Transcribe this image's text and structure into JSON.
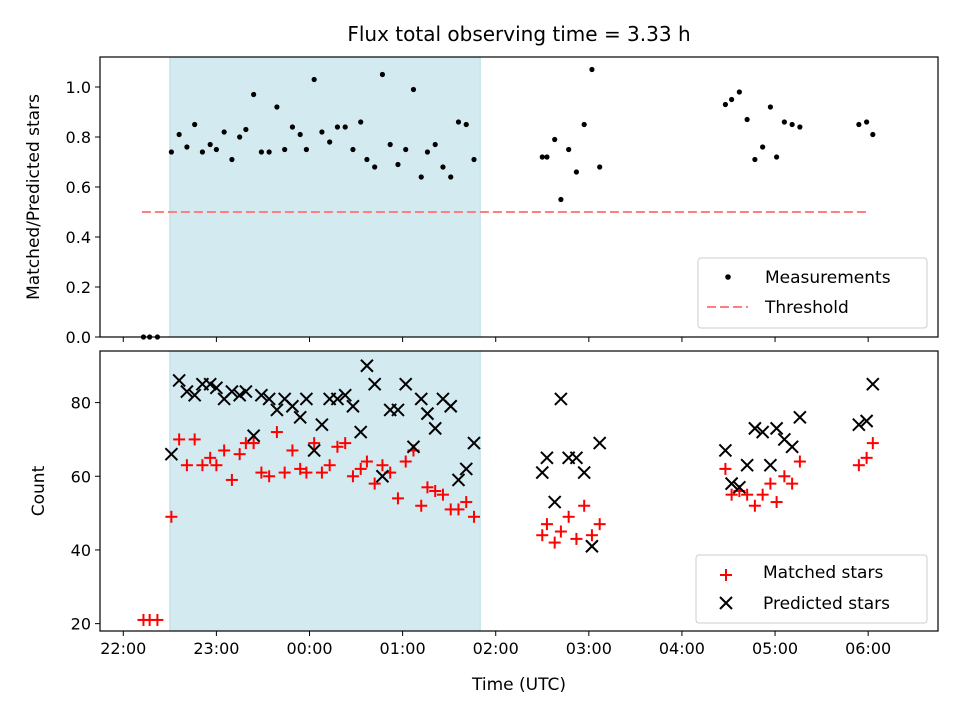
{
  "chart_data": [
    {
      "type": "scatter",
      "title": "Flux total observing time = 3.33 h",
      "xlabel": "",
      "ylabel": "Matched/Predicted stars",
      "xlim": [
        "21:45",
        "06:45"
      ],
      "ylim": [
        0,
        1.12
      ],
      "xticks": [
        "22:00",
        "23:00",
        "00:00",
        "01:00",
        "02:00",
        "03:00",
        "04:00",
        "05:00",
        "06:00"
      ],
      "yticks": [
        "0.0",
        "0.2",
        "0.4",
        "0.6",
        "0.8",
        "1.0"
      ],
      "x_tick_labels_visible": false,
      "shaded_interval": [
        "22:30",
        "01:50"
      ],
      "shade_color": "#d4eaf1",
      "legend": {
        "position": "lower right",
        "entries": [
          "Measurements",
          "Threshold"
        ]
      },
      "threshold": {
        "name": "Threshold",
        "value": 0.5,
        "x_range": [
          "22:12",
          "06:00"
        ],
        "color": "#ff7f7f",
        "style": "dashed"
      },
      "series": [
        {
          "name": "Measurements",
          "marker": "dot",
          "color": "#000000",
          "points": [
            [
              "22:13",
              0.0
            ],
            [
              "22:17",
              0.0
            ],
            [
              "22:22",
              0.0
            ],
            [
              "22:31",
              0.74
            ],
            [
              "22:36",
              0.81
            ],
            [
              "22:41",
              0.76
            ],
            [
              "22:46",
              0.85
            ],
            [
              "22:51",
              0.74
            ],
            [
              "22:56",
              0.77
            ],
            [
              "23:00",
              0.75
            ],
            [
              "23:05",
              0.82
            ],
            [
              "23:10",
              0.71
            ],
            [
              "23:15",
              0.8
            ],
            [
              "23:19",
              0.83
            ],
            [
              "23:24",
              0.97
            ],
            [
              "23:29",
              0.74
            ],
            [
              "23:34",
              0.74
            ],
            [
              "23:39",
              0.92
            ],
            [
              "23:44",
              0.75
            ],
            [
              "23:49",
              0.84
            ],
            [
              "23:54",
              0.81
            ],
            [
              "23:58",
              0.75
            ],
            [
              "00:03",
              1.03
            ],
            [
              "00:08",
              0.82
            ],
            [
              "00:13",
              0.78
            ],
            [
              "00:18",
              0.84
            ],
            [
              "00:23",
              0.84
            ],
            [
              "00:28",
              0.75
            ],
            [
              "00:33",
              0.86
            ],
            [
              "00:37",
              0.71
            ],
            [
              "00:42",
              0.68
            ],
            [
              "00:47",
              1.05
            ],
            [
              "00:52",
              0.77
            ],
            [
              "00:57",
              0.69
            ],
            [
              "01:02",
              0.75
            ],
            [
              "01:07",
              0.99
            ],
            [
              "01:12",
              0.64
            ],
            [
              "01:16",
              0.74
            ],
            [
              "01:21",
              0.77
            ],
            [
              "01:26",
              0.68
            ],
            [
              "01:31",
              0.64
            ],
            [
              "01:36",
              0.86
            ],
            [
              "01:41",
              0.85
            ],
            [
              "01:46",
              0.71
            ],
            [
              "02:30",
              0.72
            ],
            [
              "02:33",
              0.72
            ],
            [
              "02:38",
              0.79
            ],
            [
              "02:42",
              0.55
            ],
            [
              "02:47",
              0.75
            ],
            [
              "02:52",
              0.66
            ],
            [
              "02:57",
              0.85
            ],
            [
              "03:02",
              1.07
            ],
            [
              "03:07",
              0.68
            ],
            [
              "04:28",
              0.93
            ],
            [
              "04:32",
              0.95
            ],
            [
              "04:37",
              0.98
            ],
            [
              "04:42",
              0.87
            ],
            [
              "04:47",
              0.71
            ],
            [
              "04:52",
              0.76
            ],
            [
              "04:57",
              0.92
            ],
            [
              "05:01",
              0.72
            ],
            [
              "05:06",
              0.86
            ],
            [
              "05:11",
              0.85
            ],
            [
              "05:16",
              0.84
            ],
            [
              "05:54",
              0.85
            ],
            [
              "05:59",
              0.86
            ],
            [
              "06:03",
              0.81
            ]
          ]
        }
      ]
    },
    {
      "type": "scatter",
      "title": "",
      "xlabel": "Time (UTC)",
      "ylabel": "Count",
      "xlim": [
        "21:45",
        "06:45"
      ],
      "ylim": [
        18,
        94
      ],
      "xticks": [
        "22:00",
        "23:00",
        "00:00",
        "01:00",
        "02:00",
        "03:00",
        "04:00",
        "05:00",
        "06:00"
      ],
      "yticks": [
        "20",
        "40",
        "60",
        "80"
      ],
      "shaded_interval": [
        "22:30",
        "01:50"
      ],
      "shade_color": "#d4eaf1",
      "legend": {
        "position": "lower right",
        "entries": [
          "Matched stars",
          "Predicted stars"
        ]
      },
      "series": [
        {
          "name": "Matched stars",
          "marker": "plus",
          "color": "#ff0000",
          "points": [
            [
              "22:13",
              21
            ],
            [
              "22:17",
              21
            ],
            [
              "22:22",
              21
            ],
            [
              "22:31",
              49
            ],
            [
              "22:36",
              70
            ],
            [
              "22:41",
              63
            ],
            [
              "22:46",
              70
            ],
            [
              "22:51",
              63
            ],
            [
              "22:56",
              65
            ],
            [
              "23:00",
              63
            ],
            [
              "23:05",
              67
            ],
            [
              "23:10",
              59
            ],
            [
              "23:15",
              66
            ],
            [
              "23:19",
              69
            ],
            [
              "23:24",
              69
            ],
            [
              "23:29",
              61
            ],
            [
              "23:34",
              60
            ],
            [
              "23:39",
              72
            ],
            [
              "23:44",
              61
            ],
            [
              "23:49",
              67
            ],
            [
              "23:54",
              62
            ],
            [
              "23:58",
              61
            ],
            [
              "00:03",
              69
            ],
            [
              "00:08",
              61
            ],
            [
              "00:13",
              63
            ],
            [
              "00:18",
              68
            ],
            [
              "00:23",
              69
            ],
            [
              "00:28",
              60
            ],
            [
              "00:33",
              62
            ],
            [
              "00:37",
              64
            ],
            [
              "00:42",
              58
            ],
            [
              "00:47",
              63
            ],
            [
              "00:52",
              61
            ],
            [
              "00:57",
              54
            ],
            [
              "01:02",
              64
            ],
            [
              "01:07",
              67
            ],
            [
              "01:12",
              52
            ],
            [
              "01:16",
              57
            ],
            [
              "01:21",
              56
            ],
            [
              "01:26",
              55
            ],
            [
              "01:31",
              51
            ],
            [
              "01:36",
              51
            ],
            [
              "01:41",
              53
            ],
            [
              "01:46",
              49
            ],
            [
              "02:30",
              44
            ],
            [
              "02:33",
              47
            ],
            [
              "02:38",
              42
            ],
            [
              "02:42",
              45
            ],
            [
              "02:47",
              49
            ],
            [
              "02:52",
              43
            ],
            [
              "02:57",
              52
            ],
            [
              "03:02",
              44
            ],
            [
              "03:07",
              47
            ],
            [
              "04:28",
              62
            ],
            [
              "04:32",
              55
            ],
            [
              "04:37",
              56
            ],
            [
              "04:42",
              55
            ],
            [
              "04:47",
              52
            ],
            [
              "04:52",
              55
            ],
            [
              "04:57",
              58
            ],
            [
              "05:01",
              53
            ],
            [
              "05:06",
              60
            ],
            [
              "05:11",
              58
            ],
            [
              "05:16",
              64
            ],
            [
              "05:54",
              63
            ],
            [
              "05:59",
              65
            ],
            [
              "06:03",
              69
            ]
          ]
        },
        {
          "name": "Predicted stars",
          "marker": "x",
          "color": "#000000",
          "points": [
            [
              "22:31",
              66
            ],
            [
              "22:36",
              86
            ],
            [
              "22:41",
              83
            ],
            [
              "22:46",
              82
            ],
            [
              "22:51",
              85
            ],
            [
              "22:56",
              85
            ],
            [
              "23:00",
              84
            ],
            [
              "23:05",
              81
            ],
            [
              "23:10",
              83
            ],
            [
              "23:15",
              82
            ],
            [
              "23:19",
              83
            ],
            [
              "23:24",
              71
            ],
            [
              "23:29",
              82
            ],
            [
              "23:34",
              81
            ],
            [
              "23:39",
              78
            ],
            [
              "23:44",
              81
            ],
            [
              "23:49",
              79
            ],
            [
              "23:54",
              76
            ],
            [
              "23:58",
              81
            ],
            [
              "00:03",
              67
            ],
            [
              "00:08",
              74
            ],
            [
              "00:13",
              81
            ],
            [
              "00:18",
              81
            ],
            [
              "00:23",
              82
            ],
            [
              "00:28",
              79
            ],
            [
              "00:33",
              72
            ],
            [
              "00:37",
              90
            ],
            [
              "00:42",
              85
            ],
            [
              "00:47",
              60
            ],
            [
              "00:52",
              78
            ],
            [
              "00:57",
              78
            ],
            [
              "01:02",
              85
            ],
            [
              "01:07",
              68
            ],
            [
              "01:12",
              81
            ],
            [
              "01:16",
              77
            ],
            [
              "01:21",
              73
            ],
            [
              "01:26",
              81
            ],
            [
              "01:31",
              79
            ],
            [
              "01:36",
              59
            ],
            [
              "01:41",
              62
            ],
            [
              "01:46",
              69
            ],
            [
              "02:30",
              61
            ],
            [
              "02:33",
              65
            ],
            [
              "02:38",
              53
            ],
            [
              "02:42",
              81
            ],
            [
              "02:47",
              65
            ],
            [
              "02:52",
              65
            ],
            [
              "02:57",
              61
            ],
            [
              "03:02",
              41
            ],
            [
              "03:07",
              69
            ],
            [
              "04:28",
              67
            ],
            [
              "04:32",
              58
            ],
            [
              "04:37",
              57
            ],
            [
              "04:42",
              63
            ],
            [
              "04:47",
              73
            ],
            [
              "04:52",
              72
            ],
            [
              "04:57",
              63
            ],
            [
              "05:01",
              73
            ],
            [
              "05:06",
              70
            ],
            [
              "05:11",
              68
            ],
            [
              "05:16",
              76
            ],
            [
              "05:54",
              74
            ],
            [
              "05:59",
              75
            ],
            [
              "06:03",
              85
            ]
          ]
        }
      ]
    }
  ]
}
